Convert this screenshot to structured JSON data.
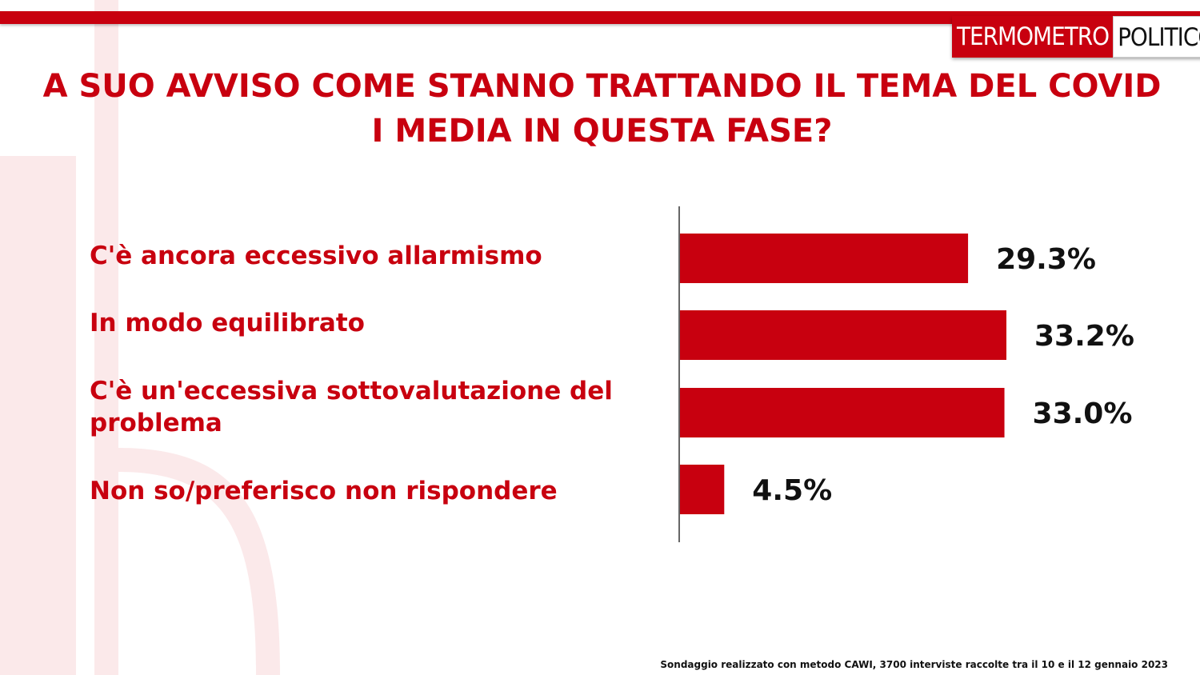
{
  "brand": {
    "logo_part_a": "TERMOMETRO",
    "logo_part_b": "POLITICO",
    "accent_color": "#c8000f"
  },
  "title": "A SUO AVVISO COME STANNO TRATTANDO IL TEMA DEL COVID I MEDIA IN QUESTA FASE?",
  "footnote": "Sondaggio realizzato con metodo CAWI, 3700 interviste raccolte tra il 10 e il 12 gennaio 2023",
  "chart_data": {
    "type": "bar",
    "orientation": "horizontal",
    "title": "A SUO AVVISO COME STANNO TRATTANDO IL TEMA DEL COVID I MEDIA IN QUESTA FASE?",
    "categories": [
      "C'è ancora eccessivo allarmismo",
      "In modo equilibrato",
      "C'è un'eccessiva sottovalutazione del problema",
      "Non so/preferisco non rispondere"
    ],
    "values": [
      29.3,
      33.2,
      33.0,
      4.5
    ],
    "value_labels": [
      "29.3%",
      "33.2%",
      "33.0%",
      "4.5%"
    ],
    "unit": "%",
    "xlim": [
      0,
      33.2
    ],
    "grid": false,
    "legend": "none",
    "bar_color": "#c8000f"
  }
}
